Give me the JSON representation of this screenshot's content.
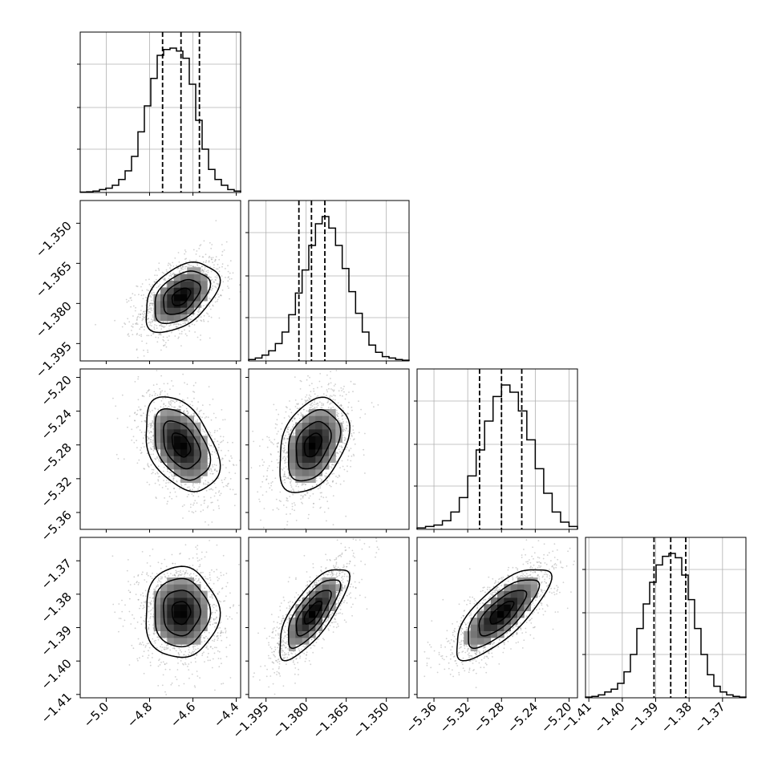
{
  "chart_data": {
    "type": "corner",
    "title": "",
    "parameters": [
      {
        "range": [
          -5.12,
          -4.38
        ],
        "ticks": [
          -5.0,
          -4.8,
          -4.6,
          -4.4
        ],
        "tick_labels": [
          "−5.0",
          "−4.8",
          "−4.6",
          "−4.4"
        ],
        "quantiles": [
          -4.74,
          -4.655,
          -4.57
        ]
      },
      {
        "range": [
          -1.4015,
          -1.3415
        ],
        "ticks": [
          -1.395,
          -1.38,
          -1.365,
          -1.35
        ],
        "tick_labels": [
          "−1.395",
          "−1.380",
          "−1.365",
          "−1.350"
        ],
        "quantiles": [
          -1.3827,
          -1.378,
          -1.373
        ]
      },
      {
        "range": [
          -5.38,
          -5.19
        ],
        "ticks": [
          -5.36,
          -5.32,
          -5.28,
          -5.24,
          -5.2
        ],
        "tick_labels": [
          "−5.36",
          "−5.32",
          "−5.28",
          "−5.24",
          "−5.20"
        ],
        "quantiles": [
          -5.306,
          -5.28,
          -5.256
        ]
      },
      {
        "range": [
          -1.411,
          -1.363
        ],
        "ticks": [
          -1.41,
          -1.4,
          -1.39,
          -1.38,
          -1.37
        ],
        "tick_labels": [
          "−1.41",
          "−1.40",
          "−1.39",
          "−1.38",
          "−1.37"
        ],
        "quantiles": [
          -1.3905,
          -1.3855,
          -1.381
        ]
      }
    ],
    "histograms": [
      {
        "param": 0,
        "x": [
          -5.12,
          -5.09,
          -5.06,
          -5.03,
          -5.0,
          -4.97,
          -4.94,
          -4.91,
          -4.88,
          -4.85,
          -4.82,
          -4.79,
          -4.76,
          -4.73,
          -4.7,
          -4.67,
          -4.64,
          -4.61,
          -4.58,
          -4.55,
          -4.52,
          -4.49,
          -4.46,
          -4.43,
          -4.4
        ],
        "counts": [
          0.3,
          0.5,
          1,
          2,
          3,
          5,
          9,
          15,
          25,
          42,
          60,
          79,
          95,
          99,
          100,
          98,
          93,
          75,
          50,
          30,
          16,
          9,
          5,
          2,
          1
        ]
      },
      {
        "param": 1,
        "x": [
          -1.4015,
          -1.399,
          -1.3965,
          -1.394,
          -1.3915,
          -1.389,
          -1.3865,
          -1.384,
          -1.3815,
          -1.379,
          -1.3765,
          -1.374,
          -1.3715,
          -1.369,
          -1.3665,
          -1.364,
          -1.3615,
          -1.359,
          -1.3565,
          -1.354,
          -1.3515,
          -1.349,
          -1.3465,
          -1.344
        ],
        "counts": [
          1,
          2,
          4,
          7,
          12,
          20,
          32,
          47,
          63,
          80,
          95,
          100,
          92,
          80,
          64,
          48,
          33,
          20,
          11,
          6,
          3,
          2,
          1,
          0.5
        ]
      },
      {
        "param": 2,
        "x": [
          -5.38,
          -5.37,
          -5.36,
          -5.35,
          -5.34,
          -5.33,
          -5.32,
          -5.31,
          -5.3,
          -5.29,
          -5.28,
          -5.27,
          -5.26,
          -5.25,
          -5.24,
          -5.23,
          -5.22,
          -5.21,
          -5.2
        ],
        "counts": [
          1,
          2,
          3,
          6,
          12,
          22,
          37,
          55,
          75,
          92,
          100,
          95,
          82,
          62,
          42,
          25,
          12,
          5,
          2
        ]
      },
      {
        "param": 3,
        "x": [
          -1.411,
          -1.409,
          -1.407,
          -1.405,
          -1.403,
          -1.401,
          -1.399,
          -1.397,
          -1.395,
          -1.393,
          -1.391,
          -1.389,
          -1.387,
          -1.385,
          -1.383,
          -1.381,
          -1.379,
          -1.377,
          -1.375,
          -1.373,
          -1.371,
          -1.369,
          -1.367,
          -1.365,
          -1.363
        ],
        "counts": [
          0.5,
          1,
          2,
          4,
          6,
          10,
          18,
          30,
          48,
          65,
          80,
          92,
          98,
          100,
          97,
          85,
          68,
          48,
          30,
          16,
          8,
          4,
          2,
          1,
          0.5
        ]
      }
    ],
    "pairs": [
      {
        "x_param": 0,
        "y_param": 1,
        "mean": [
          -4.655,
          -1.3775
        ],
        "sd": [
          0.085,
          0.0065
        ],
        "rho": 0.45
      },
      {
        "x_param": 0,
        "y_param": 2,
        "mean": [
          -4.655,
          -5.28
        ],
        "sd": [
          0.085,
          0.028
        ],
        "rho": -0.4
      },
      {
        "x_param": 1,
        "y_param": 2,
        "mean": [
          -1.3775,
          -5.28
        ],
        "sd": [
          0.0065,
          0.028
        ],
        "rho": 0.35
      },
      {
        "x_param": 0,
        "y_param": 3,
        "mean": [
          -4.655,
          -1.3855
        ],
        "sd": [
          0.085,
          0.0068
        ],
        "rho": 0.0
      },
      {
        "x_param": 1,
        "y_param": 3,
        "mean": [
          -1.3775,
          -1.3855
        ],
        "sd": [
          0.0065,
          0.0068
        ],
        "rho": 0.75
      },
      {
        "x_param": 2,
        "y_param": 3,
        "mean": [
          -5.28,
          -1.3855
        ],
        "sd": [
          0.028,
          0.0068
        ],
        "rho": 0.75
      }
    ],
    "contour_levels": [
      0.5,
      1.0,
      1.5,
      2.0
    ],
    "grid": true,
    "colors": {
      "line": "#000000",
      "grid": "#b0b0b0",
      "scatter": "#9a9a9a",
      "density_light": "#e8e8e8",
      "density_dark": "#000000"
    }
  }
}
